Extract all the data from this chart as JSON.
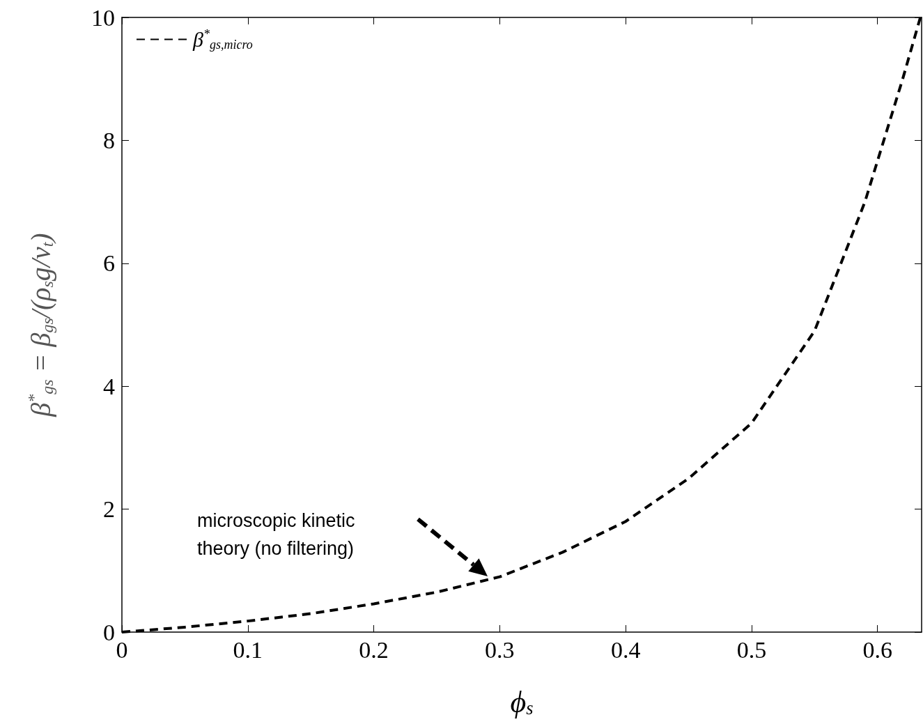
{
  "chart_data": {
    "type": "line",
    "xlabel": "ϕ$_{s}$",
    "ylabel": "β$^{*}$$_{gs}$ = β$_{gs}$/(ρ$_{s}$g/v$_{t}$)",
    "x": [
      0,
      0.05,
      0.1,
      0.15,
      0.2,
      0.25,
      0.3,
      0.35,
      0.4,
      0.45,
      0.5,
      0.52,
      0.55,
      0.571,
      0.59,
      0.605,
      0.62,
      0.634
    ],
    "series": [
      {
        "name": "β$^{*}$$_{gs,micro}$",
        "color": "#000000",
        "values": [
          0,
          0.08,
          0.18,
          0.3,
          0.46,
          0.65,
          0.9,
          1.3,
          1.8,
          2.5,
          3.4,
          4.0,
          4.9,
          6,
          7,
          8,
          9,
          10
        ]
      }
    ],
    "xlim": [
      0,
      0.635
    ],
    "ylim": [
      0,
      10
    ],
    "xticks": [
      0,
      0.1,
      0.2,
      0.3,
      0.4,
      0.5,
      0.6
    ],
    "yticks": [
      0,
      2,
      4,
      6,
      8,
      10
    ],
    "grid": false,
    "legend": "top left",
    "marker": "none",
    "line_style": "dashed",
    "annotations": [
      "microscopic kinetic theory (no filtering)"
    ]
  }
}
